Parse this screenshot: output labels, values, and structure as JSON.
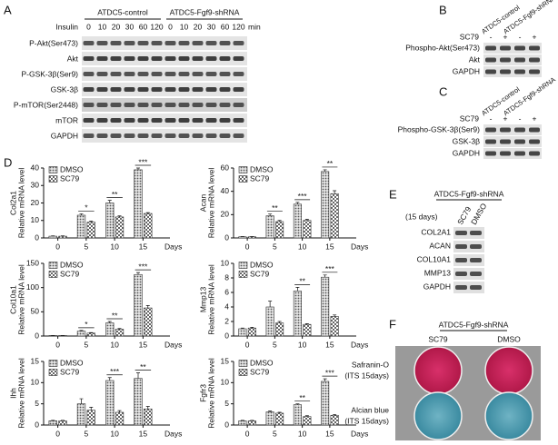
{
  "panels": {
    "A": {
      "label": "A",
      "groups": [
        "ATDC5-control",
        "ATDC5-Fgf9-shRNA"
      ],
      "treatment": "Insulin",
      "times": [
        "0",
        "10",
        "20",
        "30",
        "60",
        "120"
      ],
      "unit": "min",
      "rows": [
        "P-Akt(Ser473)",
        "Akt",
        "P-GSK-3β(Ser9)",
        "GSK-3β",
        "P-mTOR(Ser2448)",
        "mTOR",
        "GAPDH"
      ]
    },
    "B": {
      "label": "B",
      "groups": [
        "ATDC5-control",
        "ATDC5-Fgf9-shRNA"
      ],
      "treatment": "SC79",
      "lanes": [
        "-",
        "+",
        "-",
        "+"
      ],
      "rows": [
        "Phospho-Akt(Ser473)",
        "Akt",
        "GAPDH"
      ]
    },
    "C": {
      "label": "C",
      "groups": [
        "ATDC5-control",
        "ATDC5-Fgf9-shRNA"
      ],
      "treatment": "SC79",
      "lanes": [
        "-",
        "+",
        "-",
        "+"
      ],
      "rows": [
        "Phospho-GSK-3β(Ser9)",
        "GSK-3β",
        "GAPDH"
      ]
    },
    "D": {
      "label": "D"
    },
    "E": {
      "label": "E",
      "group": "ATDC5-Fgf9-shRNA",
      "duration": "(15 days)",
      "lanes": [
        "SC79",
        "DMSO"
      ],
      "rows": [
        "COL2A1",
        "ACAN",
        "COL10A1",
        "MMP13",
        "GAPDH"
      ]
    },
    "F": {
      "label": "F",
      "group": "ATDC5-Fgf9-shRNA",
      "columns": [
        "SC79",
        "DMSO"
      ],
      "rows": [
        {
          "stain": "Safranin-O",
          "note": "(ITS 15days)"
        },
        {
          "stain": "Alcian blue",
          "note": "(ITS 15days)"
        }
      ]
    }
  },
  "chart_data": [
    {
      "type": "bar",
      "title": "Col2a1",
      "ylabel": "Relative mRNA level",
      "xlabel": "Days",
      "categories": [
        "0",
        "5",
        "10",
        "15"
      ],
      "series": [
        {
          "name": "DMSO",
          "color": "#8c8c8c",
          "values": [
            1,
            13,
            20,
            39
          ],
          "errors": [
            0.2,
            0.8,
            1.5,
            1
          ]
        },
        {
          "name": "SC79",
          "color": "#c8c8c8",
          "values": [
            1,
            9,
            12,
            14
          ],
          "errors": [
            0.2,
            0.6,
            0.6,
            0.5
          ]
        }
      ],
      "ylim": [
        0,
        40
      ],
      "yticks": [
        0,
        10,
        20,
        30,
        40
      ],
      "significance": [
        null,
        "*",
        "**",
        "***"
      ]
    },
    {
      "type": "bar",
      "title": "Acan",
      "ylabel": "Relative mRNA level",
      "xlabel": "Days",
      "categories": [
        "0",
        "5",
        "10",
        "15"
      ],
      "series": [
        {
          "name": "DMSO",
          "color": "#8c8c8c",
          "values": [
            1,
            19,
            29,
            57
          ],
          "errors": [
            0.2,
            1.5,
            1.5,
            1.5
          ]
        },
        {
          "name": "SC79",
          "color": "#c8c8c8",
          "values": [
            1,
            14,
            15,
            38
          ],
          "errors": [
            0.2,
            1,
            1,
            2.5
          ]
        }
      ],
      "ylim": [
        0,
        60
      ],
      "yticks": [
        0,
        20,
        40,
        60
      ],
      "significance": [
        null,
        "**",
        "***",
        "**"
      ]
    },
    {
      "type": "bar",
      "title": "Col10a1",
      "ylabel": "Relative mRNA level",
      "xlabel": "Days",
      "categories": [
        "0",
        "5",
        "10",
        "15"
      ],
      "series": [
        {
          "name": "DMSO",
          "color": "#8c8c8c",
          "values": [
            1,
            10,
            27,
            127
          ],
          "errors": [
            0.3,
            1.5,
            3,
            4
          ]
        },
        {
          "name": "SC79",
          "color": "#c8c8c8",
          "values": [
            1,
            6,
            14,
            58
          ],
          "errors": [
            0.3,
            1,
            1.5,
            5
          ]
        }
      ],
      "ylim": [
        0,
        150
      ],
      "yticks": [
        0,
        50,
        100,
        150
      ],
      "significance": [
        null,
        "*",
        "**",
        "***"
      ]
    },
    {
      "type": "bar",
      "title": "Mmp13",
      "ylabel": "Relative mRNA level",
      "xlabel": "Days",
      "categories": [
        "0",
        "5",
        "10",
        "15"
      ],
      "series": [
        {
          "name": "DMSO",
          "color": "#8c8c8c",
          "values": [
            1,
            4,
            6.2,
            8.1
          ],
          "errors": [
            0.1,
            0.8,
            0.5,
            0.3
          ]
        },
        {
          "name": "SC79",
          "color": "#c8c8c8",
          "values": [
            1.1,
            1.8,
            1.6,
            2.7
          ],
          "errors": [
            0.1,
            0.2,
            0.1,
            0.2
          ]
        }
      ],
      "ylim": [
        0,
        10
      ],
      "yticks": [
        0,
        2,
        4,
        6,
        8,
        10
      ],
      "significance": [
        null,
        null,
        "**",
        "***"
      ]
    },
    {
      "type": "bar",
      "title": "Ihh",
      "ylabel": "Relative mRNA level",
      "xlabel": "Days",
      "categories": [
        "0",
        "5",
        "10",
        "15"
      ],
      "series": [
        {
          "name": "DMSO",
          "color": "#8c8c8c",
          "values": [
            1,
            5,
            10.5,
            11
          ],
          "errors": [
            0.1,
            1.2,
            0.7,
            1.3
          ]
        },
        {
          "name": "SC79",
          "color": "#c8c8c8",
          "values": [
            1,
            3.5,
            3,
            3.8
          ],
          "errors": [
            0.1,
            0.7,
            0.4,
            0.6
          ]
        }
      ],
      "ylim": [
        0,
        15
      ],
      "yticks": [
        0,
        5,
        10,
        15
      ],
      "significance": [
        null,
        null,
        "***",
        "**"
      ]
    },
    {
      "type": "bar",
      "title": "Fgfr3",
      "ylabel": "Relative mRNA level",
      "xlabel": "Days",
      "categories": [
        "0",
        "5",
        "10",
        "15"
      ],
      "series": [
        {
          "name": "DMSO",
          "color": "#8c8c8c",
          "values": [
            1,
            3.1,
            4.8,
            10.3
          ],
          "errors": [
            0.1,
            0.2,
            0.2,
            0.6
          ]
        },
        {
          "name": "SC79",
          "color": "#c8c8c8",
          "values": [
            1,
            2.8,
            2,
            2.3
          ],
          "errors": [
            0.1,
            0.2,
            0.2,
            0.2
          ]
        }
      ],
      "ylim": [
        0,
        15
      ],
      "yticks": [
        0,
        5,
        10,
        15
      ],
      "significance": [
        null,
        null,
        "**",
        "***"
      ]
    }
  ]
}
